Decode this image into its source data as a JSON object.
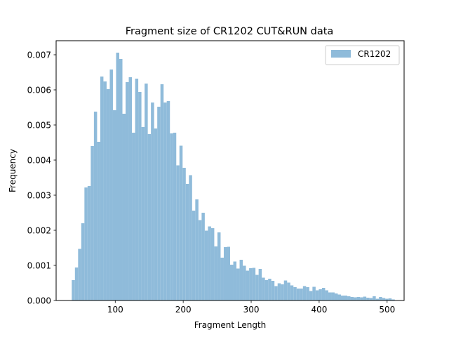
{
  "chart_data": {
    "type": "bar",
    "title": "Fragment size of CR1202 CUT&RUN data",
    "xlabel": "Fragment Length",
    "ylabel": "Frequency",
    "xlim": [
      13,
      525
    ],
    "ylim": [
      0,
      0.0074
    ],
    "x_ticks": [
      100,
      200,
      300,
      400,
      500
    ],
    "y_ticks": [
      0.0,
      0.001,
      0.002,
      0.003,
      0.004,
      0.005,
      0.006,
      0.007
    ],
    "y_tick_labels": [
      "0.000",
      "0.001",
      "0.002",
      "0.003",
      "0.004",
      "0.005",
      "0.006",
      "0.007"
    ],
    "grid": false,
    "legend_position": "top-right",
    "series": [
      {
        "name": "CR1202",
        "color": "#8fbbda",
        "bin_start": 36,
        "bin_width": 4.66,
        "values": [
          0.00058,
          0.00094,
          0.00147,
          0.0022,
          0.00322,
          0.00326,
          0.0044,
          0.00538,
          0.00452,
          0.00638,
          0.00624,
          0.00602,
          0.00658,
          0.00542,
          0.00706,
          0.00688,
          0.00532,
          0.00622,
          0.00636,
          0.00478,
          0.00632,
          0.00594,
          0.00494,
          0.00618,
          0.00474,
          0.00564,
          0.0049,
          0.00552,
          0.00616,
          0.00564,
          0.00568,
          0.00476,
          0.00478,
          0.00385,
          0.00441,
          0.00378,
          0.00332,
          0.00357,
          0.00256,
          0.00288,
          0.00229,
          0.0025,
          0.00199,
          0.00211,
          0.00206,
          0.00154,
          0.00194,
          0.00122,
          0.00152,
          0.00153,
          0.00102,
          0.00111,
          0.00091,
          0.00116,
          0.00099,
          0.00085,
          0.00092,
          0.00093,
          0.00073,
          0.0009,
          0.00065,
          0.00058,
          0.00062,
          0.00056,
          0.00041,
          0.00049,
          0.00046,
          0.00057,
          0.00051,
          0.00043,
          0.00038,
          0.00034,
          0.00034,
          0.00041,
          0.00038,
          0.00027,
          0.00039,
          0.00029,
          0.00032,
          0.00036,
          0.00029,
          0.00023,
          0.00023,
          0.0002,
          0.00017,
          0.00014,
          0.00014,
          0.00012,
          0.0001,
          9e-05,
          0.0001,
          9e-05,
          0.00011,
          8e-05,
          7e-05,
          0.00012,
          5e-05,
          0.0001,
          7e-05,
          5e-05,
          6e-05,
          3e-05
        ]
      }
    ]
  }
}
